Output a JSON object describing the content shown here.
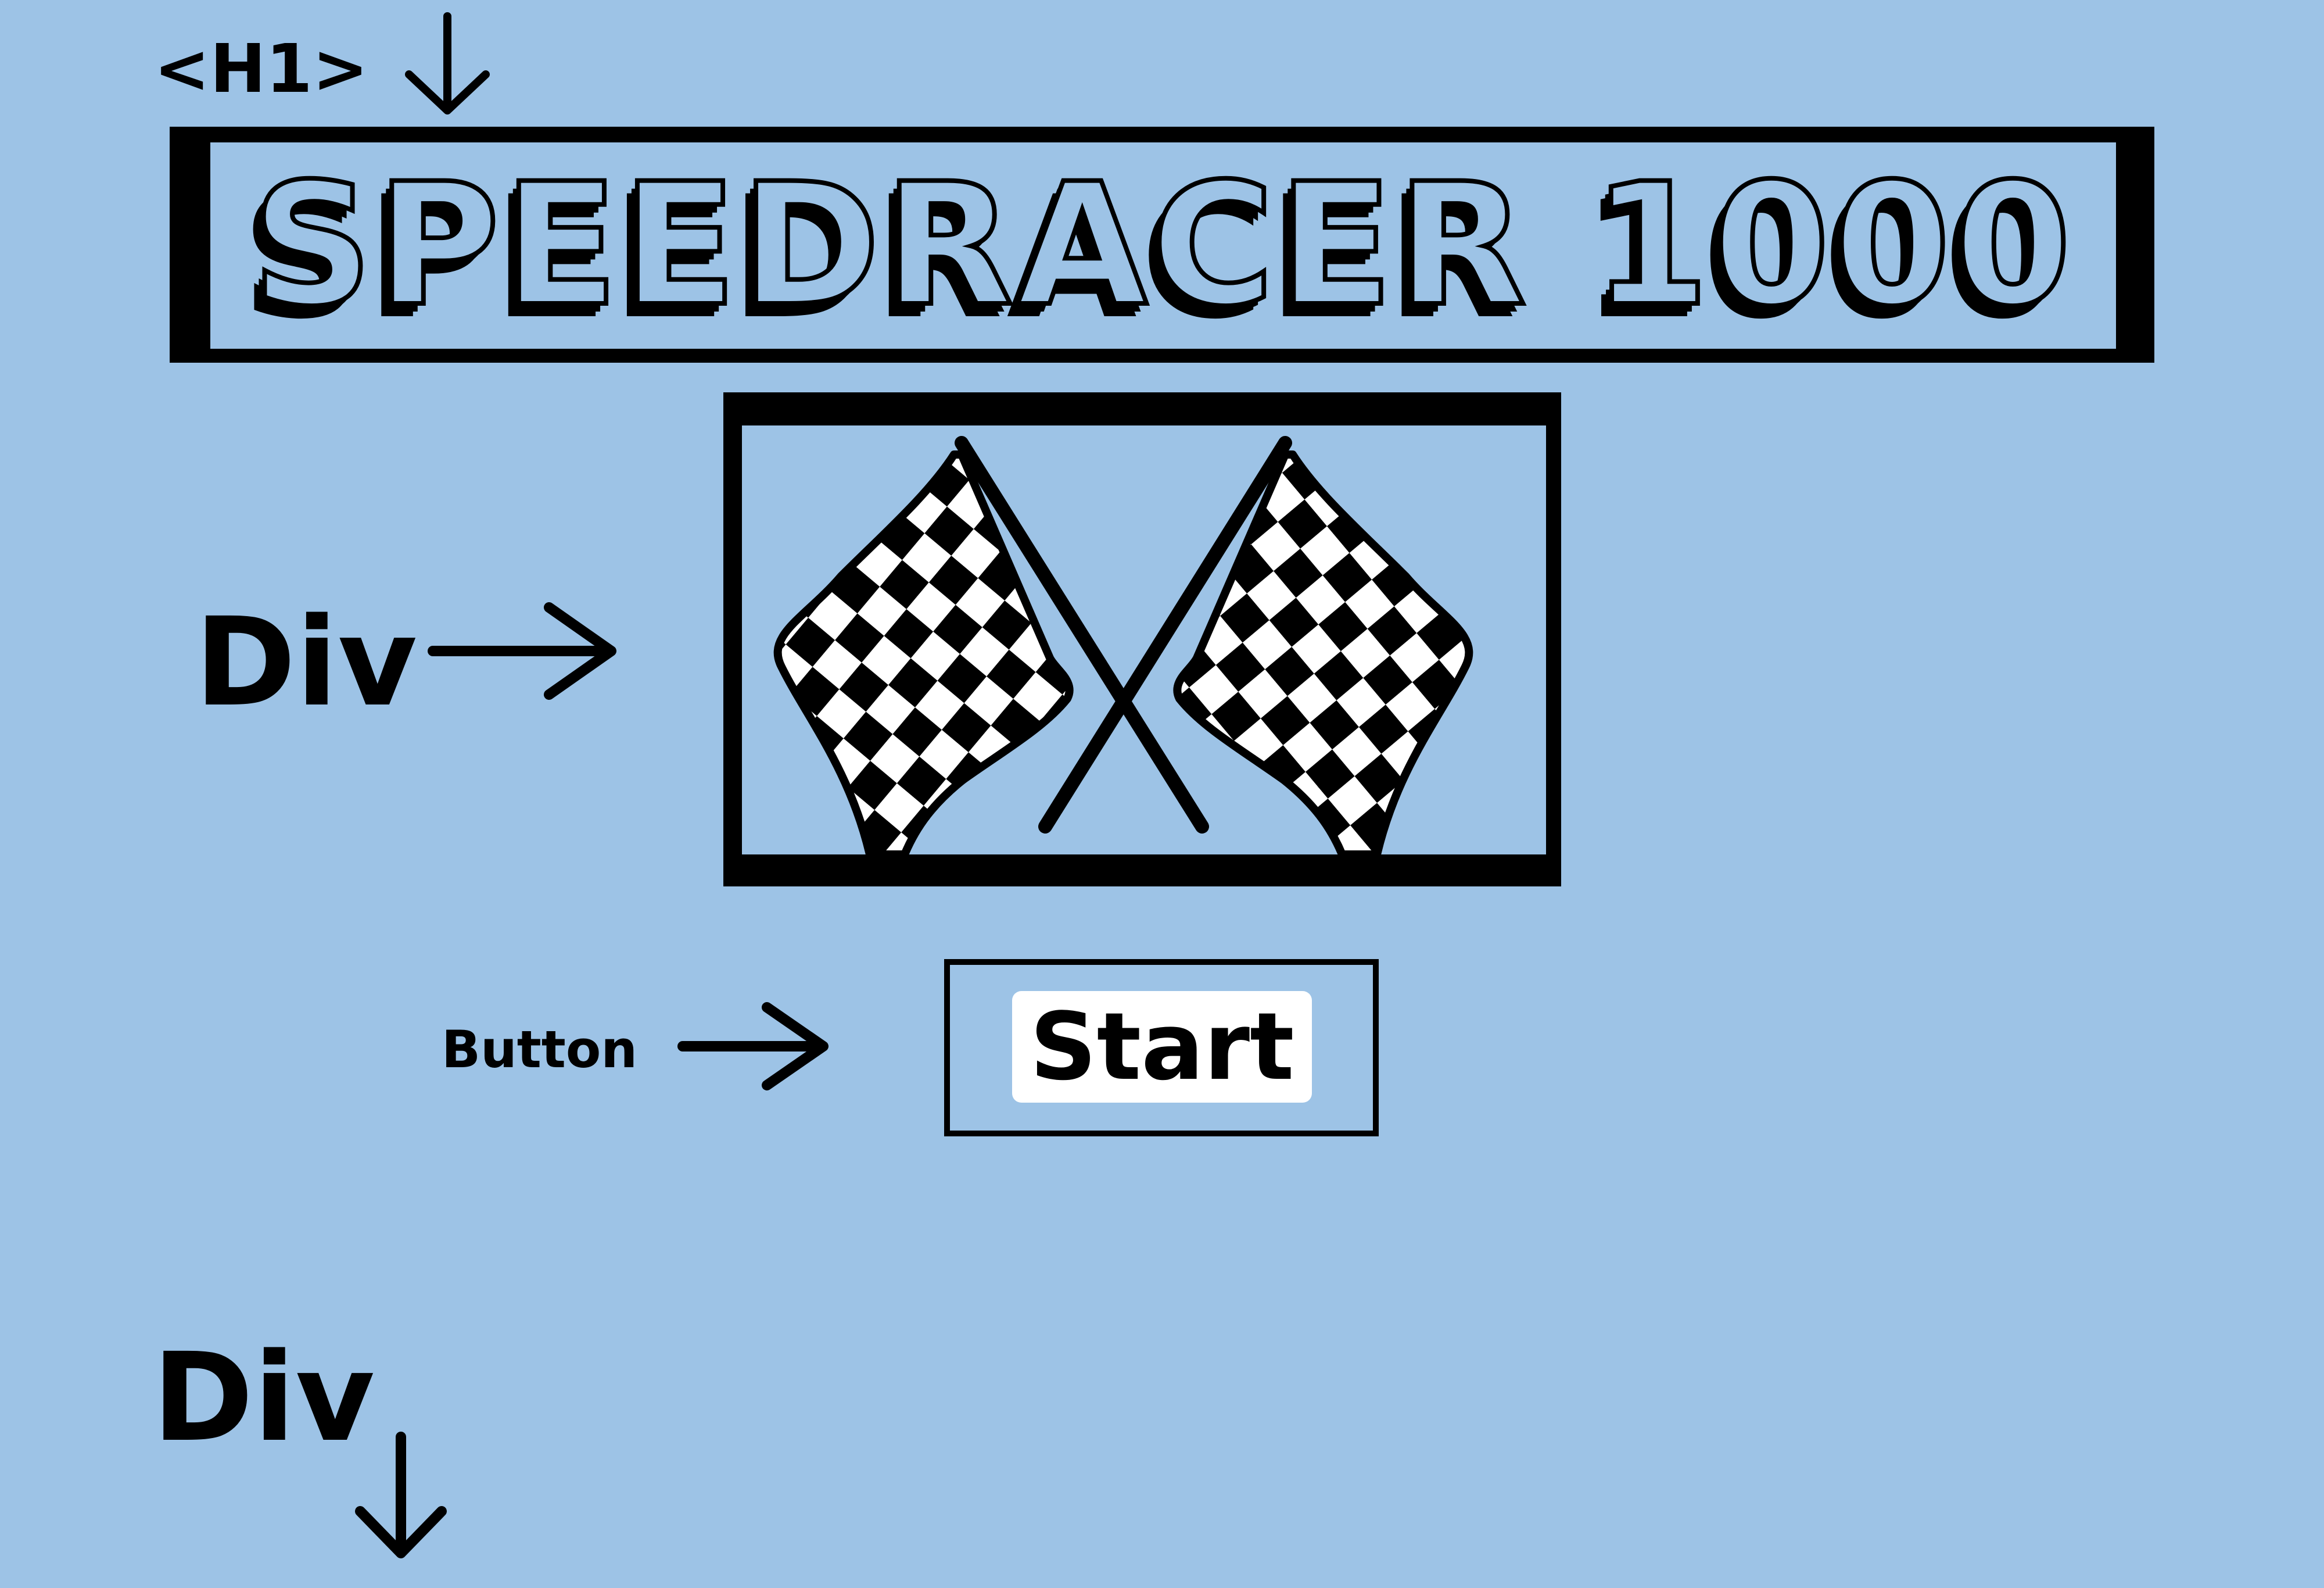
{
  "annotations": {
    "h1_label": "<H1>",
    "div_label_top": "Div",
    "button_label": "Button",
    "div_label_bottom": "Div"
  },
  "header": {
    "title": "SPEEDRACER 1000"
  },
  "image": {
    "icon": "checkered-flags-icon"
  },
  "controls": {
    "start_label": "Start"
  },
  "colors": {
    "background": "#9DC3E6",
    "ink": "#000000",
    "button_bg": "#FFFFFF"
  }
}
